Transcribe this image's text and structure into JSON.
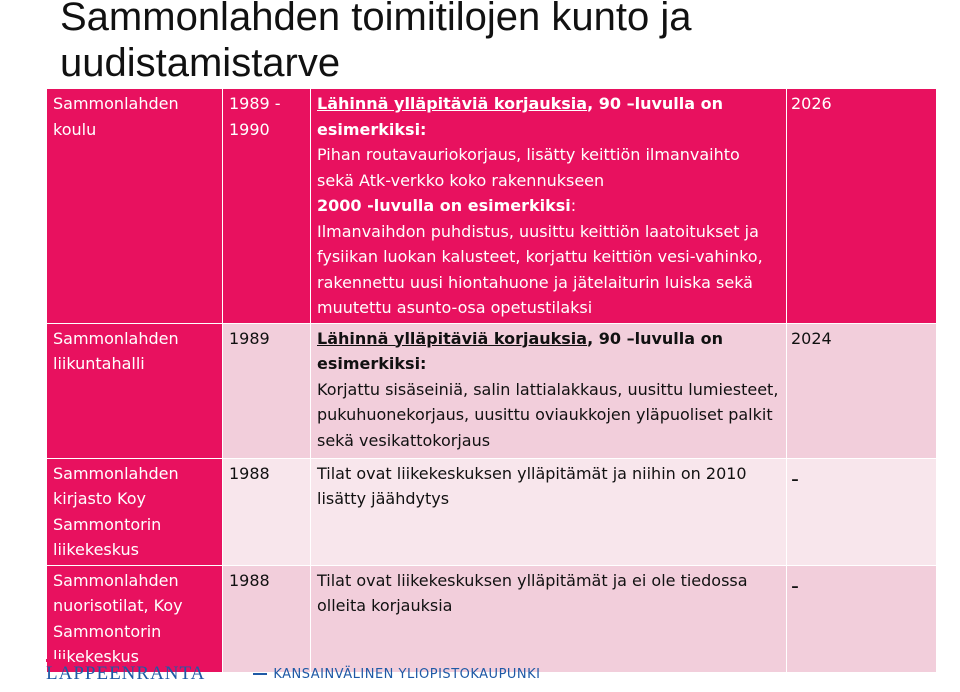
{
  "title": "Sammonlahden toimitilojen kunto ja uudistamistarve",
  "rows": [
    {
      "name": "Sammonlahden koulu",
      "year": "1989 - 1990",
      "text_a_underlined": "Lähinnä ylläpitäviä korjauksia",
      "text_a_rest": ", 90 –luvulla on esimerkiksi:",
      "text_b": "Pihan routavauriokorjaus, lisätty keittiön ilmanvaihto sekä Atk-verkko koko rakennukseen",
      "text_c_bold": "2000 -luvulla on esimerkiksi",
      "text_c_rest": ":",
      "text_d": "Ilmanvaihdon puhdistus, uusittu keittiön laatoitukset ja fysiikan luokan kalusteet, korjattu keittiön vesi-vahinko, rakennettu uusi hiontahuone ja jätelaiturin luiska sekä muutettu asunto-osa opetustilaksi",
      "target": "2026"
    },
    {
      "name": "Sammonlahden liikuntahalli",
      "year": "1989",
      "text_a_underlined": "Lähinnä ylläpitäviä korjauksia",
      "text_a_rest": ", 90 –luvulla on esimerkiksi:",
      "text_b": "Korjattu sisäseiniä, salin lattialakkaus, uusittu lumiesteet, pukuhuonekorjaus, uusittu oviaukkojen yläpuoliset palkit sekä vesikattokorjaus",
      "target": "2024"
    },
    {
      "name": "Sammonlahden kirjasto Koy Sammontorin liikekeskus",
      "year": "1988",
      "text": "Tilat ovat liikekeskuksen ylläpitämät ja niihin on 2010 lisätty jäähdytys",
      "target": "-"
    },
    {
      "name": "Sammonlahden nuorisotilat, Koy Sammontorin liikekeskus",
      "year": "1988",
      "text": "Tilat ovat liikekeskuksen ylläpitämät ja ei ole tiedossa olleita korjauksia",
      "target": "-"
    }
  ],
  "footer": {
    "logo": "LAPPEENRANTA",
    "tagline": "KANSAINVÄLINEN YLIOPISTOKAUPUNKI"
  },
  "colors": {
    "accent": "#e8115f",
    "row_light": "#f2cedb",
    "row_lighter": "#f8e6ec",
    "brand_blue": "#1f5aa6"
  }
}
